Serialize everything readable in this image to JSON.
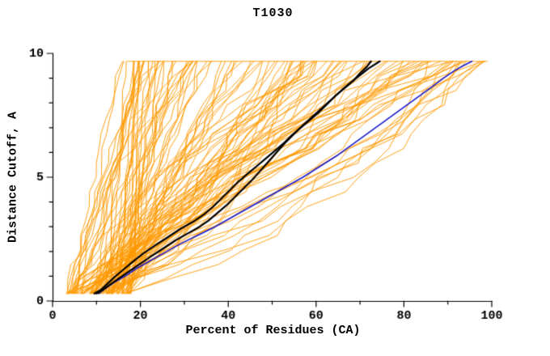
{
  "chart_data": {
    "type": "line",
    "title": "T1030",
    "xlabel": "Percent of Residues (CA)",
    "ylabel": "Distance Cutoff, A",
    "xlim": [
      0,
      100
    ],
    "ylim": [
      0,
      10
    ],
    "x_major_ticks": [
      0,
      20,
      40,
      60,
      80,
      100
    ],
    "x_minor_step": 10,
    "y_major_ticks": [
      0,
      5,
      10
    ],
    "y_minor_step": 1,
    "grid": false,
    "legend": "none",
    "frame_sides": [
      "left",
      "bottom"
    ],
    "colors": {
      "ensemble": "#FF9900",
      "highlight": "#000000",
      "reference": "#1A1ACC",
      "axis": "#000000",
      "background": "#FFFFFF"
    },
    "top_cap": {
      "y": 9.68,
      "x_start": 17,
      "x_end": 99
    },
    "ensemble": {
      "name": "model-cutoff-curves",
      "count": 115,
      "seed": 11,
      "start_x_min": 3,
      "start_x_max": 18,
      "top_x_min": 16,
      "top_x_max": 99,
      "y_start": 0.3,
      "y_end": 9.68,
      "line_width": 0.9
    },
    "series": [
      {
        "name": "highlight-model-1",
        "color_key": "highlight",
        "width": 2.2,
        "points": [
          [
            9.5,
            0.3
          ],
          [
            11,
            0.45
          ],
          [
            12.5,
            0.7
          ],
          [
            14,
            0.95
          ],
          [
            16,
            1.25
          ],
          [
            18,
            1.55
          ],
          [
            20.5,
            1.9
          ],
          [
            23,
            2.2
          ],
          [
            26,
            2.55
          ],
          [
            29,
            2.9
          ],
          [
            32,
            3.2
          ],
          [
            34.5,
            3.5
          ],
          [
            36.5,
            3.8
          ],
          [
            38.5,
            4.15
          ],
          [
            40.5,
            4.5
          ],
          [
            42.5,
            4.85
          ],
          [
            44.5,
            5.15
          ],
          [
            46.5,
            5.45
          ],
          [
            48.5,
            5.75
          ],
          [
            50.5,
            6.05
          ],
          [
            52.5,
            6.35
          ],
          [
            54.5,
            6.7
          ],
          [
            56.5,
            7.0
          ],
          [
            58.5,
            7.3
          ],
          [
            60.5,
            7.6
          ],
          [
            62.5,
            7.95
          ],
          [
            64.5,
            8.3
          ],
          [
            66.5,
            8.6
          ],
          [
            68.5,
            8.9
          ],
          [
            70,
            9.2
          ],
          [
            71.5,
            9.45
          ],
          [
            72.5,
            9.68
          ]
        ]
      },
      {
        "name": "highlight-model-2",
        "color_key": "highlight",
        "width": 2.2,
        "points": [
          [
            10,
            0.3
          ],
          [
            11.5,
            0.45
          ],
          [
            13,
            0.65
          ],
          [
            15,
            0.9
          ],
          [
            17,
            1.15
          ],
          [
            19.5,
            1.45
          ],
          [
            22,
            1.75
          ],
          [
            25,
            2.1
          ],
          [
            28,
            2.45
          ],
          [
            31,
            2.75
          ],
          [
            33.5,
            3.0
          ],
          [
            35.5,
            3.25
          ],
          [
            37.5,
            3.55
          ],
          [
            39.5,
            3.85
          ],
          [
            41.5,
            4.2
          ],
          [
            43.5,
            4.55
          ],
          [
            45.5,
            4.9
          ],
          [
            47,
            5.2
          ],
          [
            48.5,
            5.5
          ],
          [
            50,
            5.8
          ],
          [
            51.5,
            6.1
          ],
          [
            53,
            6.4
          ],
          [
            55,
            6.75
          ],
          [
            57,
            7.1
          ],
          [
            59.5,
            7.5
          ],
          [
            62,
            7.9
          ],
          [
            64.5,
            8.3
          ],
          [
            67,
            8.7
          ],
          [
            69.5,
            9.05
          ],
          [
            72,
            9.4
          ],
          [
            74.5,
            9.68
          ]
        ]
      },
      {
        "name": "reference-model",
        "color_key": "reference",
        "width": 1.6,
        "points": [
          [
            10.5,
            0.3
          ],
          [
            12,
            0.5
          ],
          [
            14,
            0.75
          ],
          [
            16.5,
            1.0
          ],
          [
            19,
            1.3
          ],
          [
            22,
            1.6
          ],
          [
            25.5,
            1.95
          ],
          [
            29,
            2.3
          ],
          [
            33,
            2.65
          ],
          [
            37,
            3.0
          ],
          [
            41,
            3.4
          ],
          [
            45,
            3.8
          ],
          [
            49,
            4.2
          ],
          [
            53,
            4.6
          ],
          [
            57,
            5.0
          ],
          [
            61,
            5.45
          ],
          [
            65,
            5.9
          ],
          [
            68.5,
            6.35
          ],
          [
            72,
            6.8
          ],
          [
            75.5,
            7.25
          ],
          [
            79,
            7.7
          ],
          [
            82.5,
            8.15
          ],
          [
            86,
            8.6
          ],
          [
            89,
            9.0
          ],
          [
            91.5,
            9.3
          ],
          [
            93.5,
            9.5
          ],
          [
            95.5,
            9.68
          ]
        ]
      }
    ]
  }
}
